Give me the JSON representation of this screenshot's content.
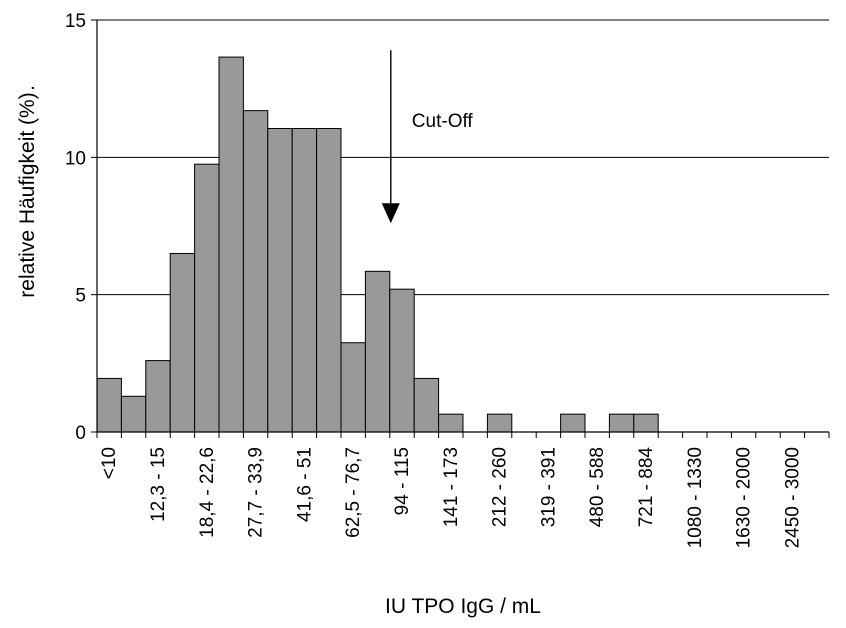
{
  "chart_data": {
    "type": "bar",
    "title": "",
    "xlabel": "IU  TPO IgG / mL",
    "ylabel": "relative Häufigkeit (%)",
    "ylabel_suffix": ".",
    "ylim": [
      0,
      15
    ],
    "yticks": [
      0,
      5,
      10,
      15
    ],
    "grid": true,
    "legend": "none",
    "bar_color": "#999999",
    "bar_edge_color": "#000000",
    "categories": [
      "<10",
      "",
      "12,3 - 15",
      "",
      "18,4 - 22,6",
      "",
      "27,7 - 33,9",
      "",
      "41,6 - 51",
      "",
      "62,5 - 76,7",
      "",
      "94 - 115",
      "",
      "141 - 173",
      "",
      "212 - 260",
      "",
      "319 - 391",
      "",
      "480 - 588",
      "",
      "721 - 884",
      "",
      "1080 - 1330",
      "",
      "1630 - 2000",
      "",
      "2450 - 3000",
      ""
    ],
    "values": [
      1.95,
      1.3,
      2.6,
      6.5,
      9.75,
      13.65,
      11.7,
      11.05,
      11.05,
      11.05,
      3.25,
      5.85,
      5.2,
      1.95,
      0.65,
      0,
      0.65,
      0,
      0,
      0.65,
      0,
      0.65,
      0.65,
      0,
      0,
      0,
      0,
      0,
      0,
      0
    ],
    "annotation": {
      "text": "Cut-Off",
      "category_index": 12,
      "arrow_top_y": 13.9,
      "arrow_bottom_y": 7.6
    }
  }
}
